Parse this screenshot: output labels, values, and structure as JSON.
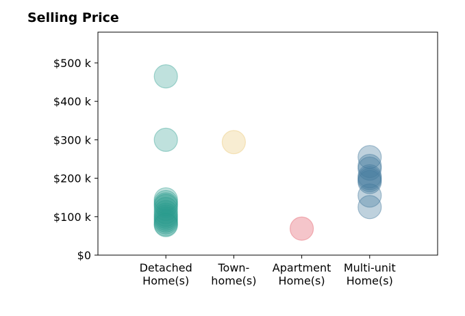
{
  "chart_data": {
    "type": "scatter",
    "title": "Selling Price",
    "xlabel": "",
    "ylabel": "",
    "categories": [
      "Detached\nHome(s)",
      "Town-\nhome(s)",
      "Apartment\nHome(s)",
      "Multi-unit\nHome(s)"
    ],
    "ylim": [
      0,
      580000
    ],
    "xlim": [
      -1,
      4
    ],
    "yticks": [
      {
        "value": 0,
        "label": "$0"
      },
      {
        "value": 100000,
        "label": "$100 k"
      },
      {
        "value": 200000,
        "label": "$200 k"
      },
      {
        "value": 300000,
        "label": "$300 k"
      },
      {
        "value": 400000,
        "label": "$400 k"
      },
      {
        "value": 500000,
        "label": "$500 k"
      }
    ],
    "grid": false,
    "series": [
      {
        "category": "Detached\nHome(s)",
        "color": "#2a9d8f",
        "opacity": 0.3,
        "values": [
          465000,
          300000,
          145000,
          138000,
          132000,
          128000,
          120000,
          112000,
          105000,
          100000,
          95000,
          90000,
          85000,
          80000,
          78000
        ]
      },
      {
        "category": "Town-\nhome(s)",
        "color": "#e9c46a",
        "opacity": 0.3,
        "values": [
          294000
        ]
      },
      {
        "category": "Apartment\nHome(s)",
        "color": "#e76f7a",
        "opacity": 0.4,
        "values": [
          69000
        ]
      },
      {
        "category": "Multi-unit\nHome(s)",
        "color": "#457b9d",
        "opacity": 0.35,
        "values": [
          255000,
          232000,
          225000,
          205000,
          200000,
          195000,
          190000,
          155000,
          125000
        ]
      }
    ]
  }
}
